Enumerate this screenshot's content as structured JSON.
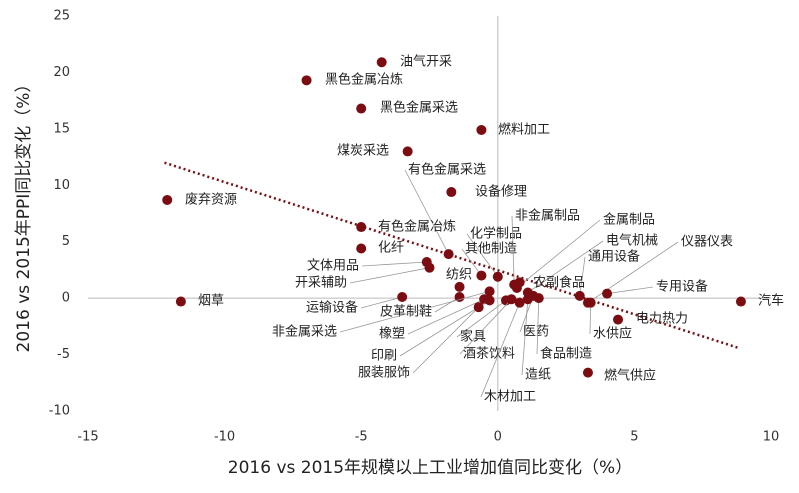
{
  "chart_data": {
    "type": "scatter",
    "x_label": "2016 vs 2015年规模以上工业增加值同比变化（%）",
    "y_label": "2016 vs 2015年PPI同比变化（%）",
    "xlim": [
      -15,
      10
    ],
    "xticks": [
      -15,
      -10,
      -5,
      0,
      5,
      10
    ],
    "ylim": [
      -10,
      25
    ],
    "yticks": [
      -10,
      -5,
      0,
      5,
      10,
      15,
      20,
      25
    ],
    "color": "#7b0d12",
    "trendline_color": "#7b0d12",
    "trendline": {
      "x": [
        -12.2,
        8.8
      ],
      "y": [
        12.0,
        -4.4
      ]
    },
    "labels": [
      "油气开采",
      "黑色金属冶炼",
      "黑色金属采选",
      "燃料加工",
      "煤炭采选",
      "有色金属采选",
      "设备修理",
      "废弃资源",
      "有色金属冶炼",
      "化纤",
      "文体用品",
      "开采辅助",
      "纺织",
      "化学制品",
      "其他制造",
      "非金属制品",
      "金属制品",
      "电气机械",
      "仪器仪表",
      "通用设备",
      "农副食品",
      "专用设备",
      "烟草",
      "汽车",
      "运输设备",
      "皮革制鞋",
      "电力热力",
      "非金属采选",
      "橡塑",
      "水供应",
      "家具",
      "医药",
      "印刷",
      "酒茶饮料",
      "食品制造",
      "服装服饰",
      "造纸",
      "燃气供应",
      "木材加工"
    ],
    "x": [
      -4.25,
      -7.0,
      -5.0,
      -0.6,
      -3.3,
      -1.8,
      -1.7,
      -12.1,
      -5.0,
      -5.0,
      -2.6,
      -2.5,
      -1.4,
      0.0,
      -0.6,
      0.6,
      0.7,
      1.1,
      3.3,
      3.0,
      0.8,
      4.0,
      -11.6,
      8.9,
      -3.5,
      -1.4,
      4.4,
      -0.3,
      -0.5,
      3.4,
      0.3,
      1.3,
      -0.3,
      0.5,
      1.5,
      -0.7,
      1.1,
      3.3,
      0.8
    ],
    "y": [
      20.9,
      19.3,
      16.8,
      14.9,
      13.0,
      3.9,
      9.4,
      8.7,
      6.3,
      4.4,
      3.2,
      2.7,
      1.0,
      1.9,
      2.0,
      1.2,
      0.9,
      0.5,
      -0.4,
      0.2,
      1.4,
      0.4,
      -0.3,
      -0.3,
      0.1,
      0.1,
      -1.9,
      0.6,
      -0.1,
      -0.4,
      -0.2,
      0.2,
      -0.2,
      -0.1,
      0.0,
      -0.8,
      -0.1,
      -6.6,
      -0.4
    ]
  }
}
